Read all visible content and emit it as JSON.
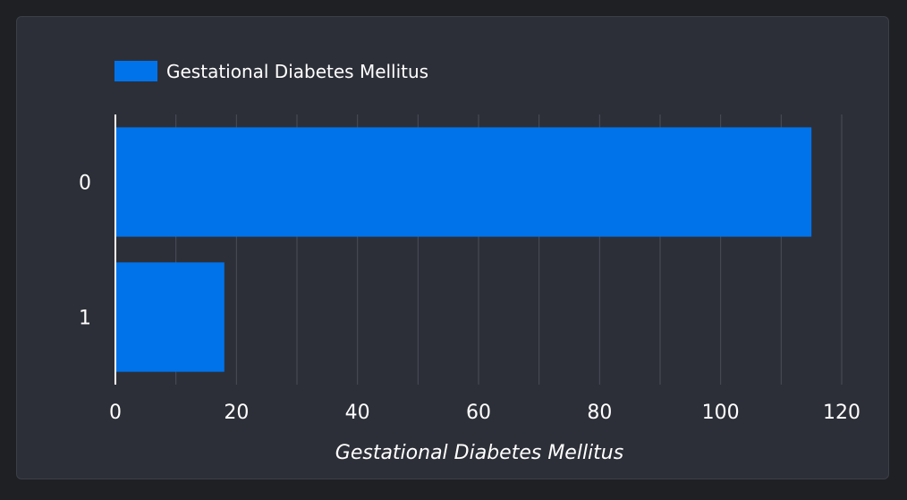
{
  "chart_data": {
    "type": "bar",
    "orientation": "horizontal",
    "categories": [
      "0",
      "1"
    ],
    "series": [
      {
        "name": "Gestational Diabetes Mellitus",
        "values": [
          115,
          18
        ]
      }
    ],
    "xlabel": "Gestational Diabetes Mellitus",
    "ylabel": "",
    "xlim": [
      0,
      120
    ],
    "xticks": [
      0,
      20,
      40,
      60,
      80,
      100,
      120
    ],
    "grid": true,
    "legend_position": "top-left"
  },
  "colors": {
    "bar": "#0073ea",
    "grid": "#4a4d57",
    "axis": "#ffffff"
  }
}
